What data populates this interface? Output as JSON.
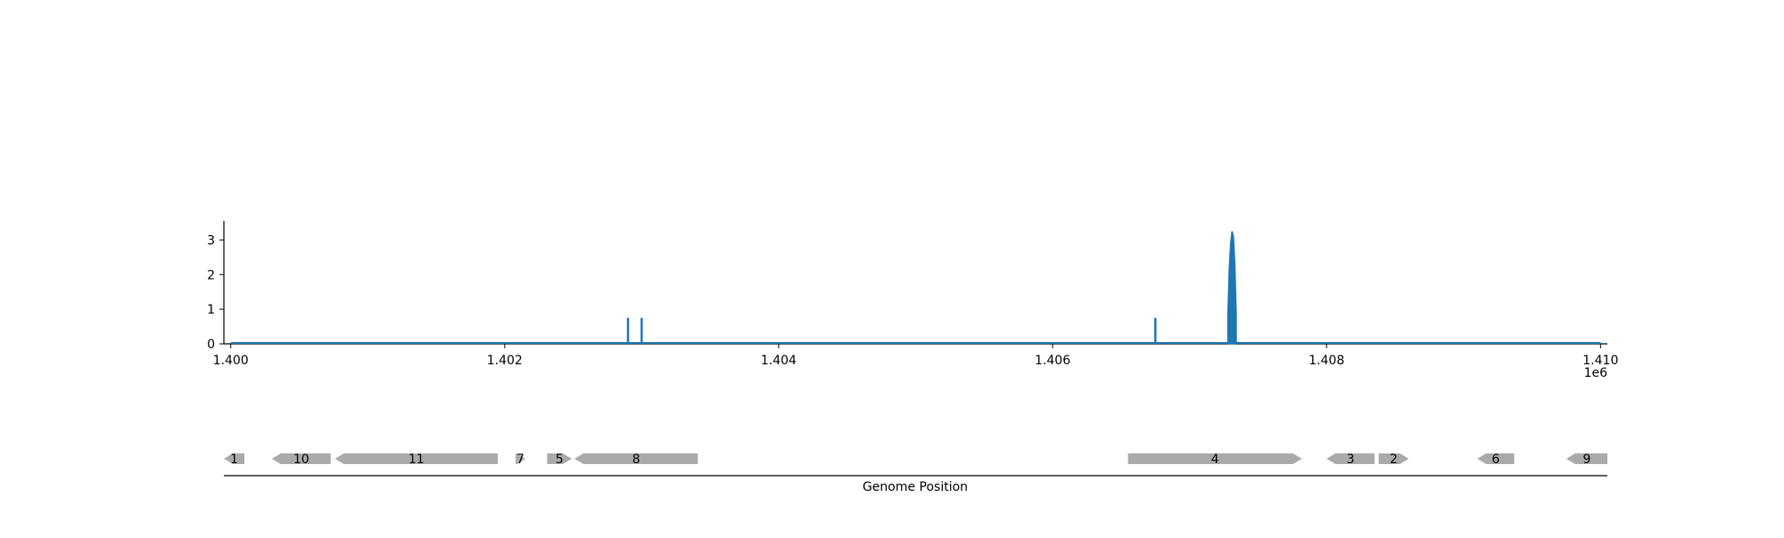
{
  "chart_data": [
    {
      "type": "area",
      "title": "",
      "xlabel": "",
      "ylabel": "",
      "x_offset_label": "1e6",
      "xlim": [
        1.39995,
        1.41005
      ],
      "ylim": [
        0,
        3.55
      ],
      "x_ticks": [
        1.4,
        1.402,
        1.404,
        1.406,
        1.408,
        1.41
      ],
      "x_tick_labels": [
        "1.400",
        "1.402",
        "1.404",
        "1.406",
        "1.408",
        "1.410"
      ],
      "y_ticks": [
        0,
        1,
        2,
        3
      ],
      "y_tick_labels": [
        "0",
        "1",
        "2",
        "3"
      ],
      "grid": false,
      "baseline_range": [
        1.4,
        1.41
      ],
      "color": "#1f77b4",
      "spikes": [
        {
          "x": 1.4029,
          "y": 0.75
        },
        {
          "x": 1.403,
          "y": 0.75
        },
        {
          "x": 1.40675,
          "y": 0.75
        }
      ],
      "peak": {
        "x": [
          1.40728,
          1.40729,
          1.4073,
          1.40731,
          1.40732,
          1.40733,
          1.40734
        ],
        "y": [
          0.9,
          2.2,
          2.9,
          3.25,
          3.1,
          2.3,
          0.9
        ]
      }
    },
    {
      "type": "gene-track",
      "xlabel": "Genome Position",
      "color": "#aaaaaa",
      "genes": [
        {
          "label": "1",
          "start": 1.39995,
          "end": 1.4001,
          "strand": "-"
        },
        {
          "label": "10",
          "start": 1.4003,
          "end": 1.40073,
          "strand": "-"
        },
        {
          "label": "11",
          "start": 1.40076,
          "end": 1.40195,
          "strand": "-"
        },
        {
          "label": "7",
          "start": 1.40208,
          "end": 1.40215,
          "strand": "+"
        },
        {
          "label": "5",
          "start": 1.40231,
          "end": 1.40249,
          "strand": "+"
        },
        {
          "label": "8",
          "start": 1.40251,
          "end": 1.40341,
          "strand": "-"
        },
        {
          "label": "4",
          "start": 1.40655,
          "end": 1.40782,
          "strand": "+"
        },
        {
          "label": "3",
          "start": 1.408,
          "end": 1.40835,
          "strand": "-"
        },
        {
          "label": "2",
          "start": 1.40838,
          "end": 1.4086,
          "strand": "+"
        },
        {
          "label": "6",
          "start": 1.4091,
          "end": 1.40937,
          "strand": "-"
        },
        {
          "label": "9",
          "start": 1.41005,
          "end": 1.40975,
          "strand": "-"
        }
      ]
    }
  ]
}
